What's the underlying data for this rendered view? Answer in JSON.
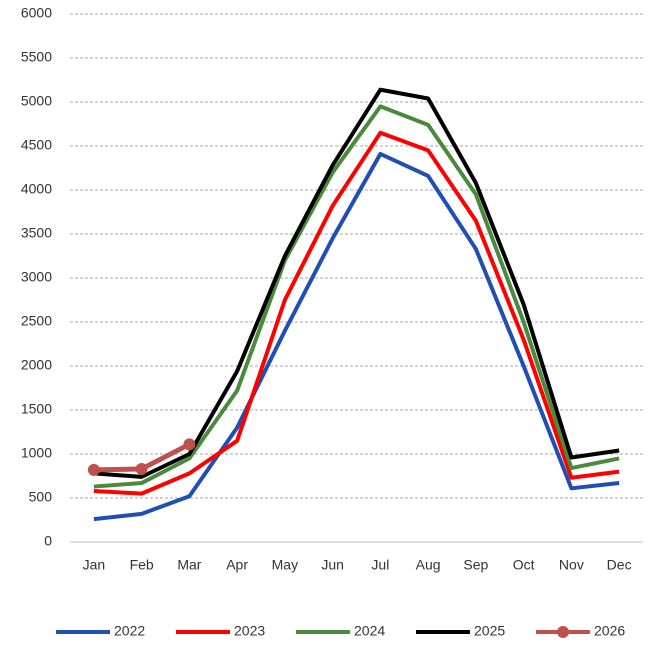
{
  "chart_data": {
    "type": "line",
    "categories": [
      "Jan",
      "Feb",
      "Mar",
      "Apr",
      "May",
      "Jun",
      "Jul",
      "Aug",
      "Sep",
      "Oct",
      "Nov",
      "Dec"
    ],
    "series": [
      {
        "name": "2022",
        "color": "#1f4fb4",
        "values": [
          260,
          320,
          520,
          1300,
          2400,
          3450,
          4410,
          4160,
          3330,
          2000,
          610,
          670
        ]
      },
      {
        "name": "2023",
        "color": "#ff0000",
        "values": [
          580,
          550,
          780,
          1150,
          2750,
          3820,
          4650,
          4450,
          3650,
          2300,
          730,
          800
        ]
      },
      {
        "name": "2024",
        "color": "#4a8a3c",
        "values": [
          630,
          670,
          950,
          1720,
          3200,
          4200,
          4950,
          4740,
          3950,
          2500,
          840,
          950
        ]
      },
      {
        "name": "2025",
        "color": "#000000",
        "values": [
          780,
          740,
          1000,
          1940,
          3250,
          4280,
          5140,
          5040,
          4080,
          2700,
          960,
          1040
        ]
      },
      {
        "name": "2026",
        "color": "#c0504d",
        "markers": true,
        "values": [
          820,
          830,
          1110,
          null,
          null,
          null,
          null,
          null,
          null,
          null,
          null,
          null
        ]
      }
    ],
    "ylim": [
      0,
      6000
    ],
    "yticks": [
      0,
      500,
      1000,
      1500,
      2000,
      2500,
      3000,
      3500,
      4000,
      4500,
      5000,
      5500,
      6000
    ],
    "grid": true,
    "legend": "bottom"
  }
}
